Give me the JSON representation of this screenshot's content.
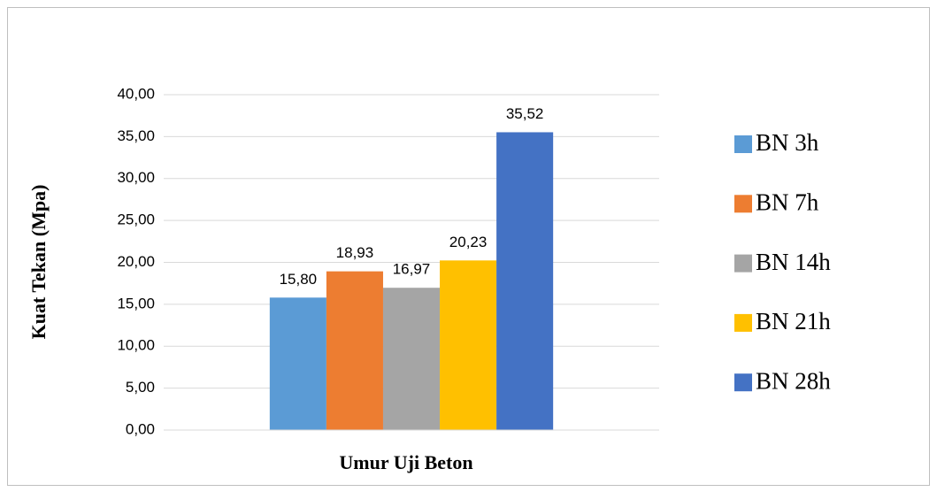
{
  "chart_data": {
    "type": "bar",
    "y_label": "Kuat Tekan (Mpa)",
    "x_label": "Umur Uji Beton",
    "categories": [
      null
    ],
    "series": [
      {
        "name": "BN 3h",
        "color": "#5b9bd5",
        "values": [
          15.8
        ],
        "value_labels": [
          "15,80"
        ]
      },
      {
        "name": "BN 7h",
        "color": "#ed7d31",
        "values": [
          18.93
        ],
        "value_labels": [
          "18,93"
        ]
      },
      {
        "name": "BN 14h",
        "color": "#a5a5a5",
        "values": [
          16.97
        ],
        "value_labels": [
          "16,97"
        ]
      },
      {
        "name": "BN 21h",
        "color": "#ffc000",
        "values": [
          20.23
        ],
        "value_labels": [
          "20,23"
        ]
      },
      {
        "name": "BN 28h",
        "color": "#4472c4",
        "values": [
          35.52
        ],
        "value_labels": [
          "35,52"
        ]
      }
    ],
    "ylim": [
      0,
      40
    ],
    "yticks": [
      {
        "value": 0,
        "label": "0,00"
      },
      {
        "value": 5,
        "label": "5,00"
      },
      {
        "value": 10,
        "label": "10,00"
      },
      {
        "value": 15,
        "label": "15,00"
      },
      {
        "value": 20,
        "label": "20,00"
      },
      {
        "value": 25,
        "label": "25,00"
      },
      {
        "value": 30,
        "label": "30,00"
      },
      {
        "value": 35,
        "label": "35,00"
      },
      {
        "value": 40,
        "label": "40,00"
      }
    ],
    "grid": true,
    "legend": "right"
  }
}
